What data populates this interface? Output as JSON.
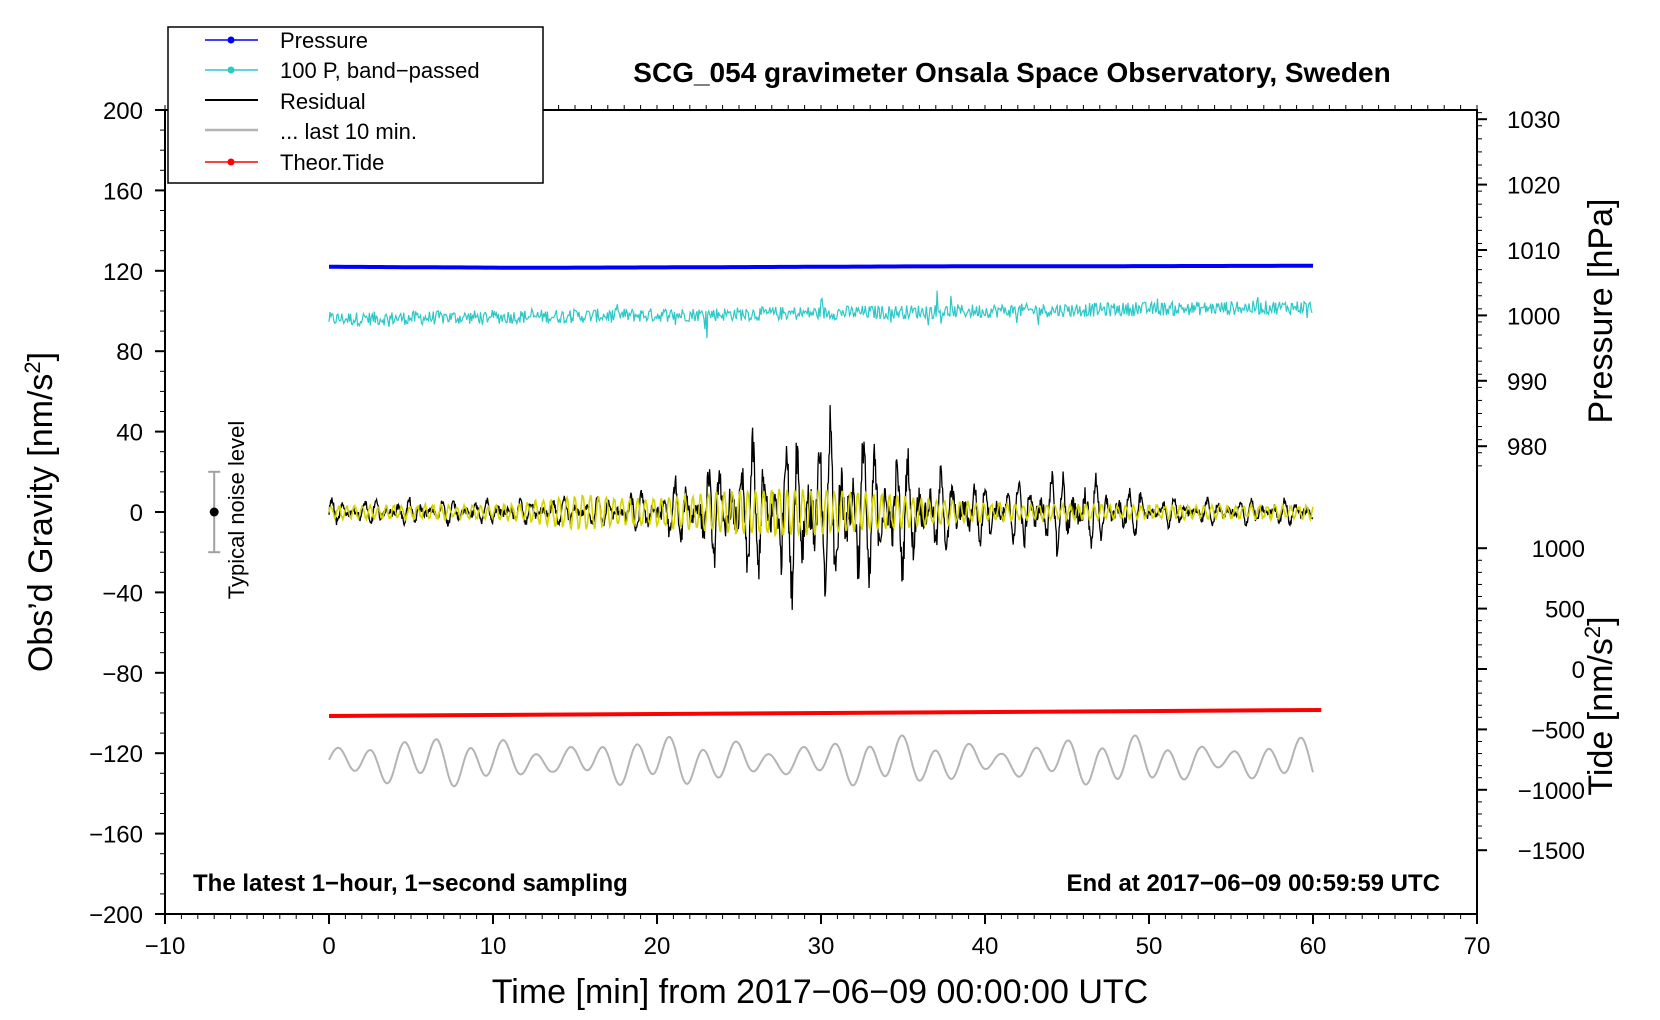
{
  "chart_data": {
    "type": "line",
    "title": "SCG_054 gravimeter Onsala Space Observatory, Sweden",
    "xlabel": "Time [min] from 2017−06−09 00:00:00 UTC",
    "ylabel_main": "Obs’d Gravity [nm/s",
    "ylabel_unit_sup": "2",
    "ylabel_unit_close": "]",
    "ylabel_pressure": "Pressure [hPa]",
    "ylabel_tide": "Tide [nm/s",
    "ylabel_tide_sup": "2",
    "ylabel_tide_close": "]",
    "xlim": [
      -10,
      70
    ],
    "ylim": [
      -200,
      200
    ],
    "x_ticks": [
      "−10",
      "0",
      "10",
      "20",
      "30",
      "40",
      "50",
      "60",
      "70"
    ],
    "x_tick_values": [
      -10,
      0,
      10,
      20,
      30,
      40,
      50,
      60,
      70
    ],
    "y_ticks": [
      "200",
      "160",
      "120",
      "80",
      "40",
      "0",
      "−40",
      "−80",
      "−120",
      "−160",
      "−200"
    ],
    "y_tick_values": [
      200,
      160,
      120,
      80,
      40,
      0,
      -40,
      -80,
      -120,
      -160,
      -200
    ],
    "pressure_ticks": [
      "1030",
      "1020",
      "1010",
      "1000",
      "990",
      "980"
    ],
    "pressure_tick_values": [
      1030,
      1020,
      1010,
      1000,
      990,
      980
    ],
    "tide_ticks": [
      "1000",
      "500",
      "0",
      "−500",
      "−1000",
      "−1500"
    ],
    "tide_tick_values": [
      1000,
      500,
      0,
      -500,
      -1000,
      -1500
    ],
    "legend": [
      {
        "label": "Pressure",
        "color": "#0000ff",
        "marker": true
      },
      {
        "label": "100 P, band−passed",
        "color": "#2ec8c8",
        "marker": true
      },
      {
        "label": "Residual",
        "color": "#000000",
        "marker": false
      },
      {
        "label": "... last 10 min.",
        "color": "#b4b4b4",
        "marker": false
      },
      {
        "label": "Theor.Tide",
        "color": "#ff0000",
        "marker": true
      }
    ],
    "noise_label": "Typical noise level",
    "noise_bar": {
      "x": -7,
      "center": 0,
      "half_range": 20
    },
    "bottom_left_note": "The latest 1−hour, 1−second sampling",
    "bottom_right_note": "End at 2017−06−09 00:59:59 UTC",
    "series": [
      {
        "name": "Pressure",
        "color": "#0000ff",
        "x_range": [
          0,
          60
        ],
        "approx_plot_values": [
          122,
          121.5,
          121.8,
          122.2,
          122.3,
          122.5
        ]
      },
      {
        "name": "100 P, band-passed",
        "color": "#2ec8c8",
        "x_range": [
          0,
          60
        ],
        "approx_plot_level_start": 96,
        "approx_plot_level_end": 102,
        "approx_amplitude": 7
      },
      {
        "name": "Residual",
        "color": "#000000",
        "x_range": [
          0,
          60
        ],
        "approx_max": 57,
        "approx_min": -58,
        "peak_near_minute": 30
      },
      {
        "name": "... last 10 min.",
        "color": "#b4b4b4",
        "x_range": [
          0,
          60
        ],
        "approx_plot_level": -124,
        "approx_amplitude": 12
      },
      {
        "name": "Theor.Tide",
        "color": "#ff0000",
        "x_range": [
          0,
          60.5
        ],
        "approx_plot_values": [
          -101.5,
          -98.5
        ]
      },
      {
        "name": "Residual (filtered overlay)",
        "color": "#d4d400",
        "x_range": [
          0,
          60
        ],
        "approx_max": 13,
        "approx_min": -14
      }
    ]
  }
}
